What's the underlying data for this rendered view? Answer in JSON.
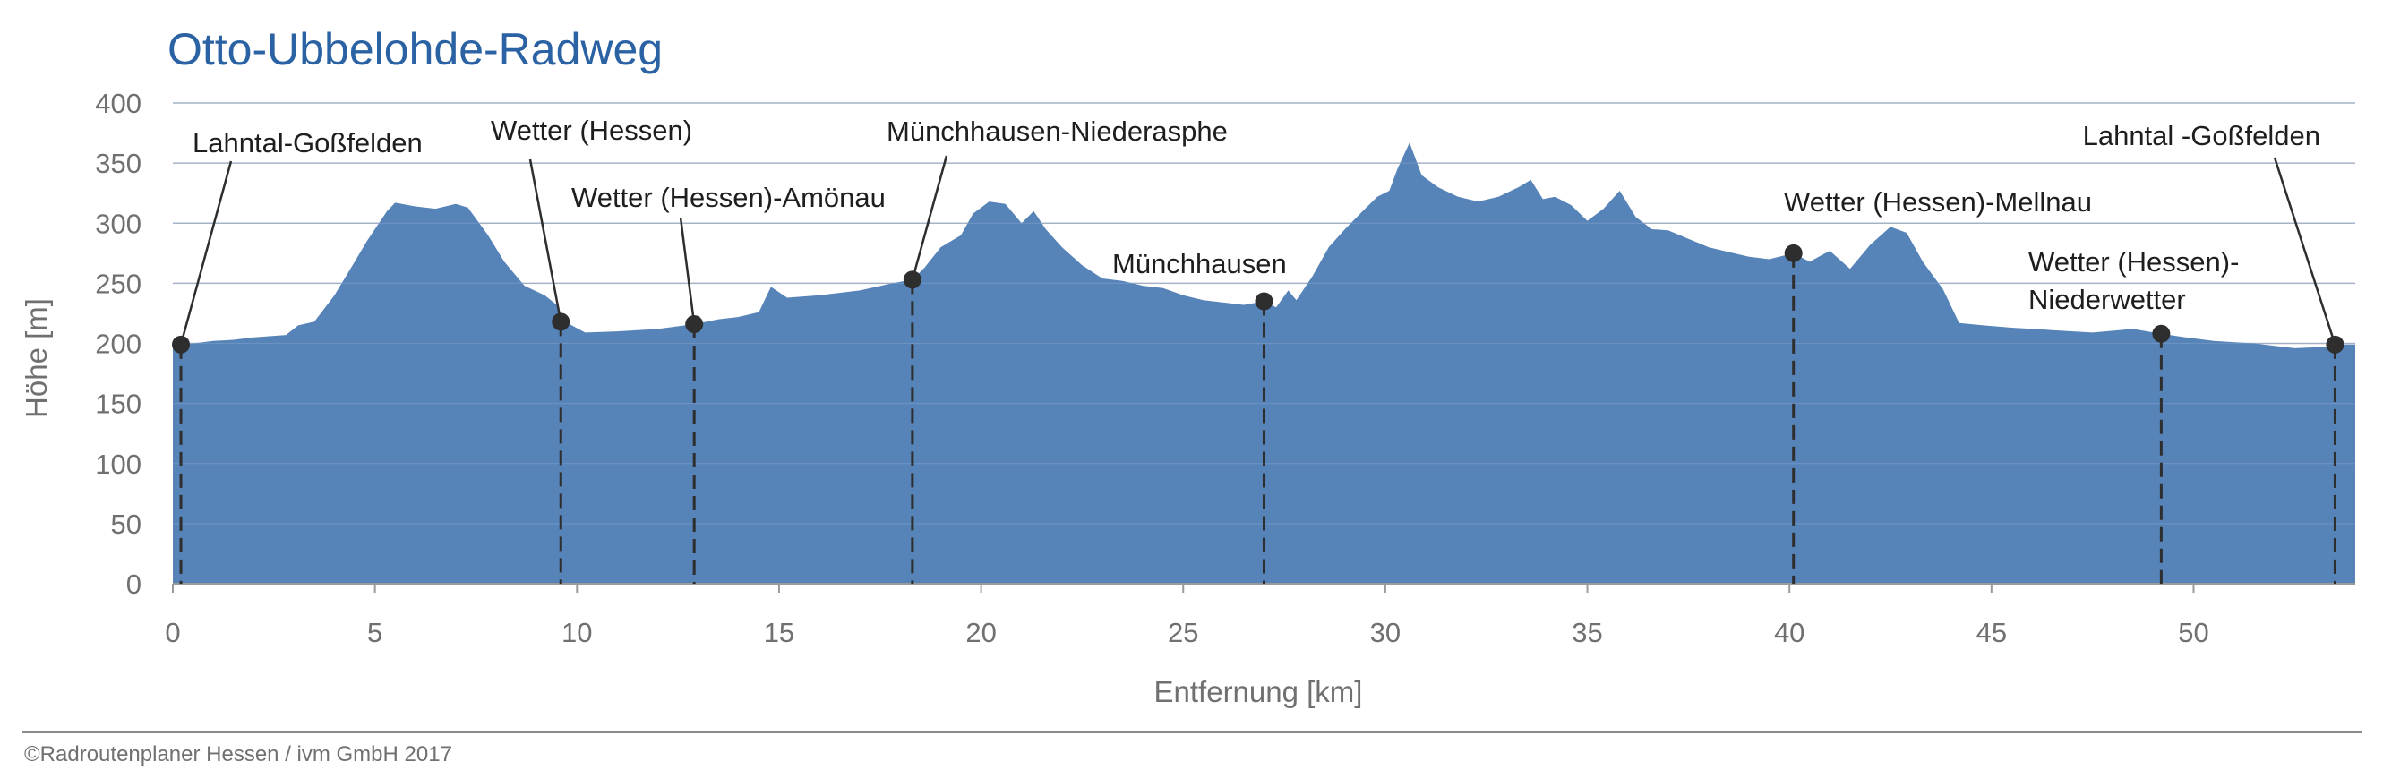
{
  "chart_data": {
    "type": "area",
    "title": "Otto-Ubbelohde-Radweg",
    "xlabel": "Entfernung [km]",
    "ylabel": "Höhe [m]",
    "xlim": [
      0,
      54
    ],
    "ylim": [
      0,
      400
    ],
    "xticks": [
      0,
      5,
      10,
      15,
      20,
      25,
      30,
      35,
      40,
      45,
      50
    ],
    "yticks": [
      0,
      50,
      100,
      150,
      200,
      250,
      300,
      350,
      400
    ],
    "grid": true,
    "fill_color": "#5683b8",
    "series": [
      {
        "values": [
          [
            0,
            199
          ],
          [
            0.5,
            200
          ],
          [
            1,
            202
          ],
          [
            1.5,
            203
          ],
          [
            2,
            205
          ],
          [
            2.8,
            207
          ],
          [
            3.1,
            215
          ],
          [
            3.5,
            218
          ],
          [
            4,
            240
          ],
          [
            4.5,
            268
          ],
          [
            4.8,
            285
          ],
          [
            5,
            295
          ],
          [
            5.3,
            310
          ],
          [
            5.5,
            317
          ],
          [
            6,
            314
          ],
          [
            6.5,
            312
          ],
          [
            7,
            316
          ],
          [
            7.3,
            313
          ],
          [
            7.8,
            290
          ],
          [
            8.2,
            268
          ],
          [
            8.7,
            248
          ],
          [
            9.2,
            240
          ],
          [
            9.5,
            232
          ],
          [
            9.7,
            218
          ],
          [
            10.2,
            209
          ],
          [
            11,
            210
          ],
          [
            12,
            212
          ],
          [
            12.9,
            216
          ],
          [
            13.5,
            220
          ],
          [
            14,
            222
          ],
          [
            14.5,
            226
          ],
          [
            14.8,
            247
          ],
          [
            15.2,
            238
          ],
          [
            16,
            240
          ],
          [
            17,
            244
          ],
          [
            17.8,
            250
          ],
          [
            18.3,
            253
          ],
          [
            18.6,
            263
          ],
          [
            19,
            280
          ],
          [
            19.5,
            290
          ],
          [
            19.8,
            308
          ],
          [
            20.2,
            318
          ],
          [
            20.6,
            316
          ],
          [
            21,
            300
          ],
          [
            21.3,
            310
          ],
          [
            21.6,
            295
          ],
          [
            22,
            280
          ],
          [
            22.5,
            265
          ],
          [
            23,
            254
          ],
          [
            23.5,
            252
          ],
          [
            24,
            248
          ],
          [
            24.5,
            246
          ],
          [
            25,
            240
          ],
          [
            25.5,
            236
          ],
          [
            26,
            234
          ],
          [
            26.5,
            232
          ],
          [
            27,
            235
          ],
          [
            27.3,
            230
          ],
          [
            27.6,
            244
          ],
          [
            27.8,
            236
          ],
          [
            28.2,
            256
          ],
          [
            28.6,
            280
          ],
          [
            29,
            295
          ],
          [
            29.5,
            312
          ],
          [
            29.8,
            322
          ],
          [
            30.1,
            327
          ],
          [
            30.3,
            345
          ],
          [
            30.6,
            367
          ],
          [
            30.9,
            340
          ],
          [
            31.3,
            330
          ],
          [
            31.8,
            322
          ],
          [
            32.3,
            318
          ],
          [
            32.8,
            322
          ],
          [
            33.3,
            330
          ],
          [
            33.6,
            336
          ],
          [
            33.9,
            320
          ],
          [
            34.2,
            322
          ],
          [
            34.6,
            315
          ],
          [
            35,
            302
          ],
          [
            35.4,
            312
          ],
          [
            35.8,
            327
          ],
          [
            36.2,
            305
          ],
          [
            36.6,
            295
          ],
          [
            37,
            294
          ],
          [
            37.5,
            287
          ],
          [
            38,
            280
          ],
          [
            38.5,
            276
          ],
          [
            39,
            272
          ],
          [
            39.5,
            270
          ],
          [
            40.1,
            275
          ],
          [
            40.5,
            268
          ],
          [
            41,
            277
          ],
          [
            41.5,
            262
          ],
          [
            42,
            282
          ],
          [
            42.5,
            297
          ],
          [
            42.9,
            292
          ],
          [
            43.3,
            268
          ],
          [
            43.8,
            245
          ],
          [
            44.2,
            217
          ],
          [
            44.8,
            215
          ],
          [
            45.5,
            213
          ],
          [
            46.5,
            211
          ],
          [
            47.5,
            209
          ],
          [
            48.5,
            212
          ],
          [
            49.2,
            208
          ],
          [
            49.8,
            205
          ],
          [
            50.5,
            202
          ],
          [
            51.5,
            200
          ],
          [
            52.5,
            196
          ],
          [
            53.2,
            197
          ],
          [
            53.7,
            199
          ],
          [
            54,
            199
          ]
        ]
      }
    ],
    "places": [
      {
        "km": 0.2,
        "elev": 199,
        "label_lines": [
          "Lahntal-Goßfelden"
        ]
      },
      {
        "km": 9.6,
        "elev": 218,
        "label_lines": [
          "Wetter (Hessen)"
        ]
      },
      {
        "km": 12.9,
        "elev": 216,
        "label_lines": [
          "Wetter (Hessen)-Amönau"
        ]
      },
      {
        "km": 18.3,
        "elev": 253,
        "label_lines": [
          "Münchhausen-Niederasphe"
        ]
      },
      {
        "km": 27.0,
        "elev": 235,
        "label_lines": [
          "Münchhausen"
        ]
      },
      {
        "km": 40.1,
        "elev": 275,
        "label_lines": [
          "Wetter (Hessen)-Mellnau"
        ]
      },
      {
        "km": 49.2,
        "elev": 208,
        "label_lines": [
          "Wetter (Hessen)-",
          "Niederwetter"
        ]
      },
      {
        "km": 53.5,
        "elev": 199,
        "label_lines": [
          "Lahntal -Goßfelden"
        ]
      }
    ]
  },
  "footer": {
    "copyright": "©Radroutenplaner Hessen / ivm GmbH 2017"
  }
}
